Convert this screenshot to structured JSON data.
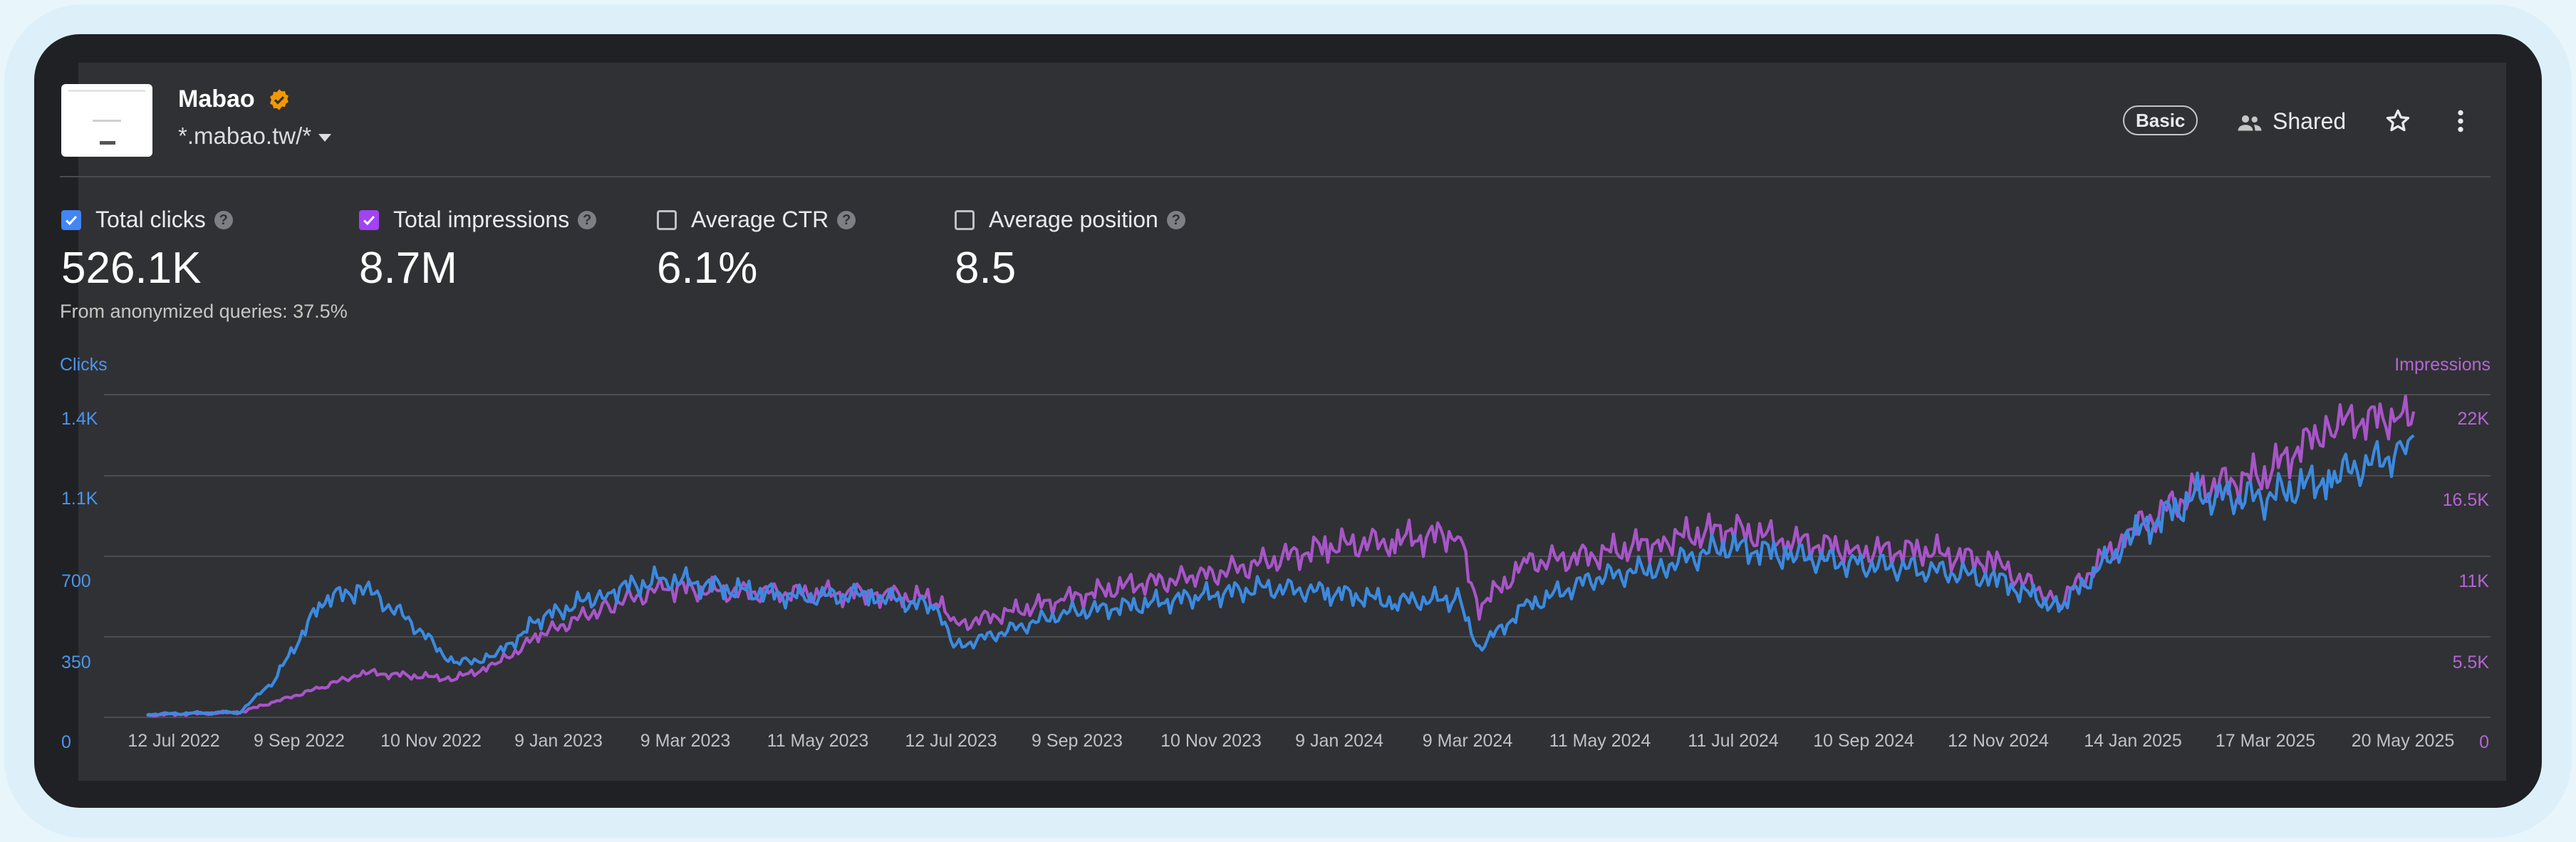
{
  "site": {
    "name": "Mabao",
    "domain": "*.mabao.tw/*",
    "badge": "Basic",
    "shared_label": "Shared"
  },
  "icons": {
    "verified": "verified-badge-icon",
    "shared": "people-icon",
    "star": "star-outline-icon",
    "more": "more-vertical-icon",
    "help": "help-circle-icon",
    "caret": "caret-down-icon"
  },
  "metrics": [
    {
      "label": "Total clicks",
      "value": "526.1K",
      "checked": true,
      "color": "#4285f4"
    },
    {
      "label": "Total impressions",
      "value": "8.7M",
      "checked": true,
      "color": "#a142f4"
    },
    {
      "label": "Average CTR",
      "value": "6.1%",
      "checked": false
    },
    {
      "label": "Average position",
      "value": "8.5",
      "checked": false
    }
  ],
  "anon_note": "From anonymized queries: 37.5%",
  "colors": {
    "clicks": "#3b8ae0",
    "impressions": "#a855c9",
    "clicks_label": "#4a95f0",
    "impressions_label": "#b565d6"
  },
  "chart_data": {
    "type": "line",
    "left_axis": {
      "title": "Clicks",
      "ticks": [
        "0",
        "350",
        "700",
        "1.1K",
        "1.4K"
      ],
      "tick_values": [
        0,
        350,
        700,
        1050,
        1400
      ],
      "range": [
        0,
        1400
      ]
    },
    "right_axis": {
      "title": "Impressions",
      "ticks": [
        "0",
        "5.5K",
        "11K",
        "16.5K",
        "22K"
      ],
      "tick_values": [
        0,
        5500,
        11000,
        16500,
        22000
      ],
      "range": [
        0,
        22000
      ]
    },
    "x_tick_labels": [
      "12 Jul 2022",
      "9 Sep 2022",
      "10 Nov 2022",
      "9 Jan 2023",
      "9 Mar 2023",
      "11 May 2023",
      "12 Jul 2023",
      "9 Sep 2023",
      "10 Nov 2023",
      "9 Jan 2024",
      "9 Mar 2024",
      "11 May 2024",
      "11 Jul 2024",
      "10 Sep 2024",
      "12 Nov 2024",
      "14 Jan 2025",
      "17 Mar 2025",
      "20 May 2025"
    ],
    "grid": true,
    "x": [
      "12 Jul 2022",
      "24 Aug 2022",
      "9 Sep 2022",
      "1 Oct 2022",
      "20 Oct 2022",
      "10 Nov 2022",
      "1 Dec 2022",
      "20 Dec 2022",
      "9 Jan 2023",
      "9 Feb 2023",
      "9 Mar 2023",
      "10 Apr 2023",
      "11 May 2023",
      "12 Jun 2023",
      "12 Jul 2023",
      "20 Jul 2023",
      "9 Sep 2023",
      "10 Oct 2023",
      "10 Nov 2023",
      "10 Dec 2023",
      "9 Jan 2024",
      "9 Feb 2024",
      "9 Mar 2024",
      "19 Mar 2024",
      "10 Apr 2024",
      "11 May 2024",
      "11 Jun 2024",
      "11 Jul 2024",
      "10 Aug 2024",
      "10 Sep 2024",
      "10 Oct 2024",
      "12 Nov 2024",
      "12 Dec 2024",
      "14 Jan 2025",
      "14 Feb 2025",
      "17 Mar 2025",
      "17 Apr 2025",
      "20 May 2025",
      "25 May 2025"
    ],
    "series": [
      {
        "name": "Clicks",
        "axis": "left",
        "values": [
          10,
          20,
          160,
          500,
          560,
          420,
          230,
          260,
          420,
          540,
          600,
          550,
          520,
          530,
          470,
          300,
          450,
          480,
          520,
          560,
          540,
          500,
          510,
          300,
          480,
          600,
          650,
          740,
          700,
          660,
          640,
          600,
          470,
          780,
          960,
          950,
          1040,
          1150,
          1220
        ]
      },
      {
        "name": "Impressions",
        "axis": "right",
        "values": [
          100,
          300,
          1000,
          2000,
          3000,
          2800,
          2600,
          3500,
          5500,
          7500,
          8800,
          8500,
          8400,
          8400,
          8000,
          6200,
          8000,
          9000,
          9500,
          10500,
          11600,
          12000,
          12500,
          7500,
          10500,
          11000,
          12000,
          12800,
          12000,
          11300,
          11300,
          10500,
          7800,
          12600,
          15500,
          16500,
          20000,
          20500,
          20800
        ]
      }
    ]
  }
}
